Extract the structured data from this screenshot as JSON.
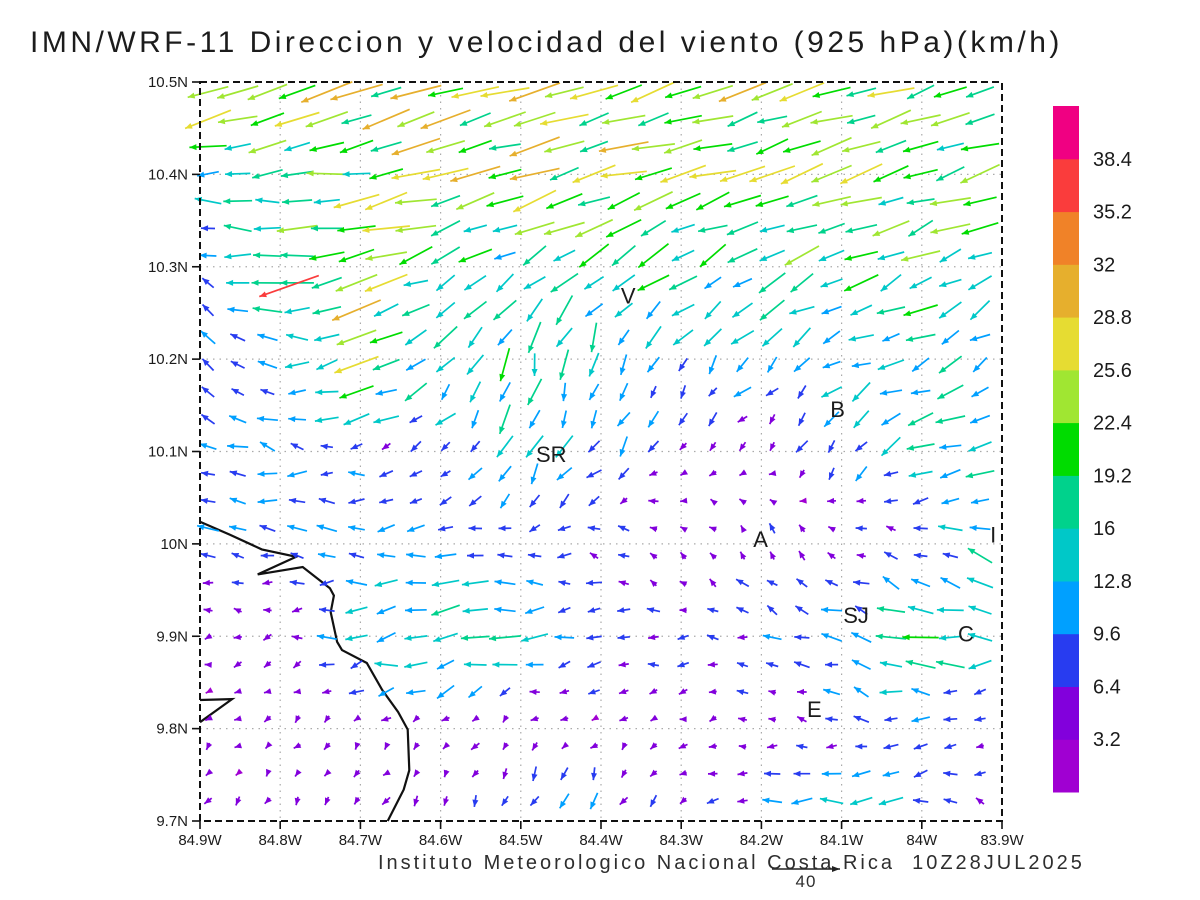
{
  "title": "IMN/WRF-11 Direccion y velocidad del viento (925 hPa)(km/h)",
  "footer": {
    "credit": "Instituto Meteorologico Nacional Costa Rica  10Z28JUL2025",
    "reference_label": "40",
    "reference_speed_kmh": 40
  },
  "axes": {
    "x_tick_labels": [
      "84.9W",
      "84.8W",
      "84.7W",
      "84.6W",
      "84.5W",
      "84.4W",
      "84.3W",
      "84.2W",
      "84.1W",
      "84W",
      "83.9W"
    ],
    "y_tick_labels": [
      "10.5N",
      "10.4N",
      "10.3N",
      "10.2N",
      "10.1N",
      "10N",
      "9.9N",
      "9.8N",
      "9.7N"
    ],
    "x_values": [
      -84.9,
      -84.8,
      -84.7,
      -84.6,
      -84.5,
      -84.4,
      -84.3,
      -84.2,
      -84.1,
      -84.0,
      -83.9
    ],
    "y_values": [
      10.5,
      10.4,
      10.3,
      10.2,
      10.1,
      10.0,
      9.9,
      9.8,
      9.7
    ],
    "grid": "dotted"
  },
  "colorbar": {
    "levels": [
      3.2,
      6.4,
      9.6,
      12.8,
      16,
      19.2,
      22.4,
      25.6,
      28.8,
      32,
      35.2,
      38.4
    ],
    "labels_top_to_bottom": [
      "38.4",
      "35.2",
      "32",
      "28.8",
      "25.6",
      "22.4",
      "19.2",
      "16",
      "12.8",
      "9.6",
      "6.4",
      "3.2"
    ],
    "segment_colors_bottom_to_top": [
      "#a000d2",
      "#8200dc",
      "#283cf0",
      "#00a0ff",
      "#00c8c8",
      "#00d28c",
      "#00dc00",
      "#a0e632",
      "#e6dc32",
      "#e6af2d",
      "#f08228",
      "#fa3c3c",
      "#f00082"
    ]
  },
  "chart_data": {
    "type": "quiver",
    "units": "km/h",
    "level": "925 hPa",
    "valid_time": "10Z28JUL2025",
    "lon_range": [
      -84.9,
      -83.9
    ],
    "lat_range": [
      9.7,
      10.5
    ],
    "grid_lons": [
      -84.9,
      -84.8,
      -84.7,
      -84.6,
      -84.5,
      -84.4,
      -84.3,
      -84.2,
      -84.1,
      -84.0,
      -83.9
    ],
    "grid_lats": [
      10.5,
      10.4,
      10.3,
      10.2,
      10.1,
      10.0,
      9.9,
      9.8,
      9.7
    ],
    "u_kmh": [
      [
        -28,
        -25,
        -24,
        -24,
        -24,
        -23,
        -22,
        -22,
        -22,
        -21,
        -21
      ],
      [
        -15,
        -17,
        -20,
        -23,
        -23,
        -22,
        -21,
        -21,
        -20,
        -20,
        -20
      ],
      [
        -6,
        -20,
        -26,
        -13,
        -15,
        -16,
        -14,
        -15,
        -16,
        -17,
        -16
      ],
      [
        -8,
        -10,
        -21,
        -10,
        -4,
        -3,
        -6,
        -8,
        -11,
        -13,
        -7
      ],
      [
        -10,
        -9,
        -8,
        -6,
        -5,
        -6,
        -4,
        -3,
        -5,
        -15,
        -17
      ],
      [
        -10,
        -10,
        -10,
        -9,
        -8,
        -6,
        -4,
        -3,
        -3,
        -9,
        -14
      ],
      [
        -4,
        -5,
        -12,
        -19,
        -14,
        -8,
        -6,
        -8,
        -12,
        -17,
        -14
      ],
      [
        -3,
        -3,
        -3,
        -3,
        -3,
        -3,
        -4,
        -4,
        -6,
        -8,
        -4
      ],
      [
        -2,
        -2,
        -2,
        -3,
        -3,
        -4,
        -3,
        -10,
        -13,
        -12,
        -3
      ]
    ],
    "v_kmh": [
      [
        -10,
        -8,
        -7,
        -7,
        -7,
        -7,
        -7,
        -7,
        -7,
        -7,
        -7
      ],
      [
        -2,
        -2,
        -4,
        -6,
        -6,
        -6,
        -6,
        -6,
        -6,
        -6,
        -6
      ],
      [
        4,
        0,
        -7,
        -4,
        -9,
        -10,
        -8,
        -8,
        -8,
        -8,
        -7
      ],
      [
        5,
        4,
        -9,
        -13,
        -17,
        -13,
        -9,
        -8,
        -6,
        -5,
        -8
      ],
      [
        3,
        1,
        0,
        -5,
        -14,
        -9,
        -4,
        -3,
        -9,
        -6,
        -5
      ],
      [
        4,
        2,
        0,
        -2,
        0,
        2,
        4,
        6,
        4,
        3,
        6
      ],
      [
        -1,
        -1,
        -2,
        -3,
        -2,
        -1,
        0,
        3,
        4,
        4,
        0
      ],
      [
        -2,
        -3,
        -3,
        -3,
        -3,
        -2,
        -2,
        -1,
        2,
        0,
        -6
      ],
      [
        -4,
        -4,
        -4,
        -6,
        -10,
        -10,
        -4,
        -2,
        -1,
        -2,
        8
      ]
    ],
    "extra_arrows": [
      {
        "lon": -84.789,
        "lat": 10.279,
        "u": -34,
        "v": -12
      }
    ],
    "station_labels": [
      {
        "text": "V",
        "lon": -84.366,
        "lat": 10.268
      },
      {
        "text": "B",
        "lon": -84.105,
        "lat": 10.145
      },
      {
        "text": "SR",
        "lon": -84.462,
        "lat": 10.096
      },
      {
        "text": "A",
        "lon": -84.201,
        "lat": 10.004
      },
      {
        "text": "SJ",
        "lon": -84.082,
        "lat": 9.922
      },
      {
        "text": "C",
        "lon": -83.945,
        "lat": 9.902
      },
      {
        "text": "E",
        "lon": -84.134,
        "lat": 9.82
      },
      {
        "text": "I",
        "lon": -83.911,
        "lat": 10.009
      }
    ],
    "coastline": [
      [
        [
          -84.9,
          10.024
        ],
        [
          -84.863,
          10.01
        ],
        [
          -84.823,
          9.994
        ],
        [
          -84.78,
          9.986
        ],
        [
          -84.828,
          9.967
        ],
        [
          -84.772,
          9.975
        ],
        [
          -84.738,
          9.952
        ],
        [
          -84.733,
          9.944
        ],
        [
          -84.737,
          9.926
        ],
        [
          -84.729,
          9.894
        ],
        [
          -84.723,
          9.885
        ],
        [
          -84.692,
          9.871
        ],
        [
          -84.673,
          9.842
        ],
        [
          -84.653,
          9.818
        ],
        [
          -84.641,
          9.799
        ],
        [
          -84.639,
          9.755
        ],
        [
          -84.646,
          9.734
        ],
        [
          -84.666,
          9.7
        ]
      ],
      [
        [
          -84.9,
          9.831
        ],
        [
          -84.86,
          9.832
        ],
        [
          -84.9,
          9.807
        ]
      ]
    ]
  }
}
